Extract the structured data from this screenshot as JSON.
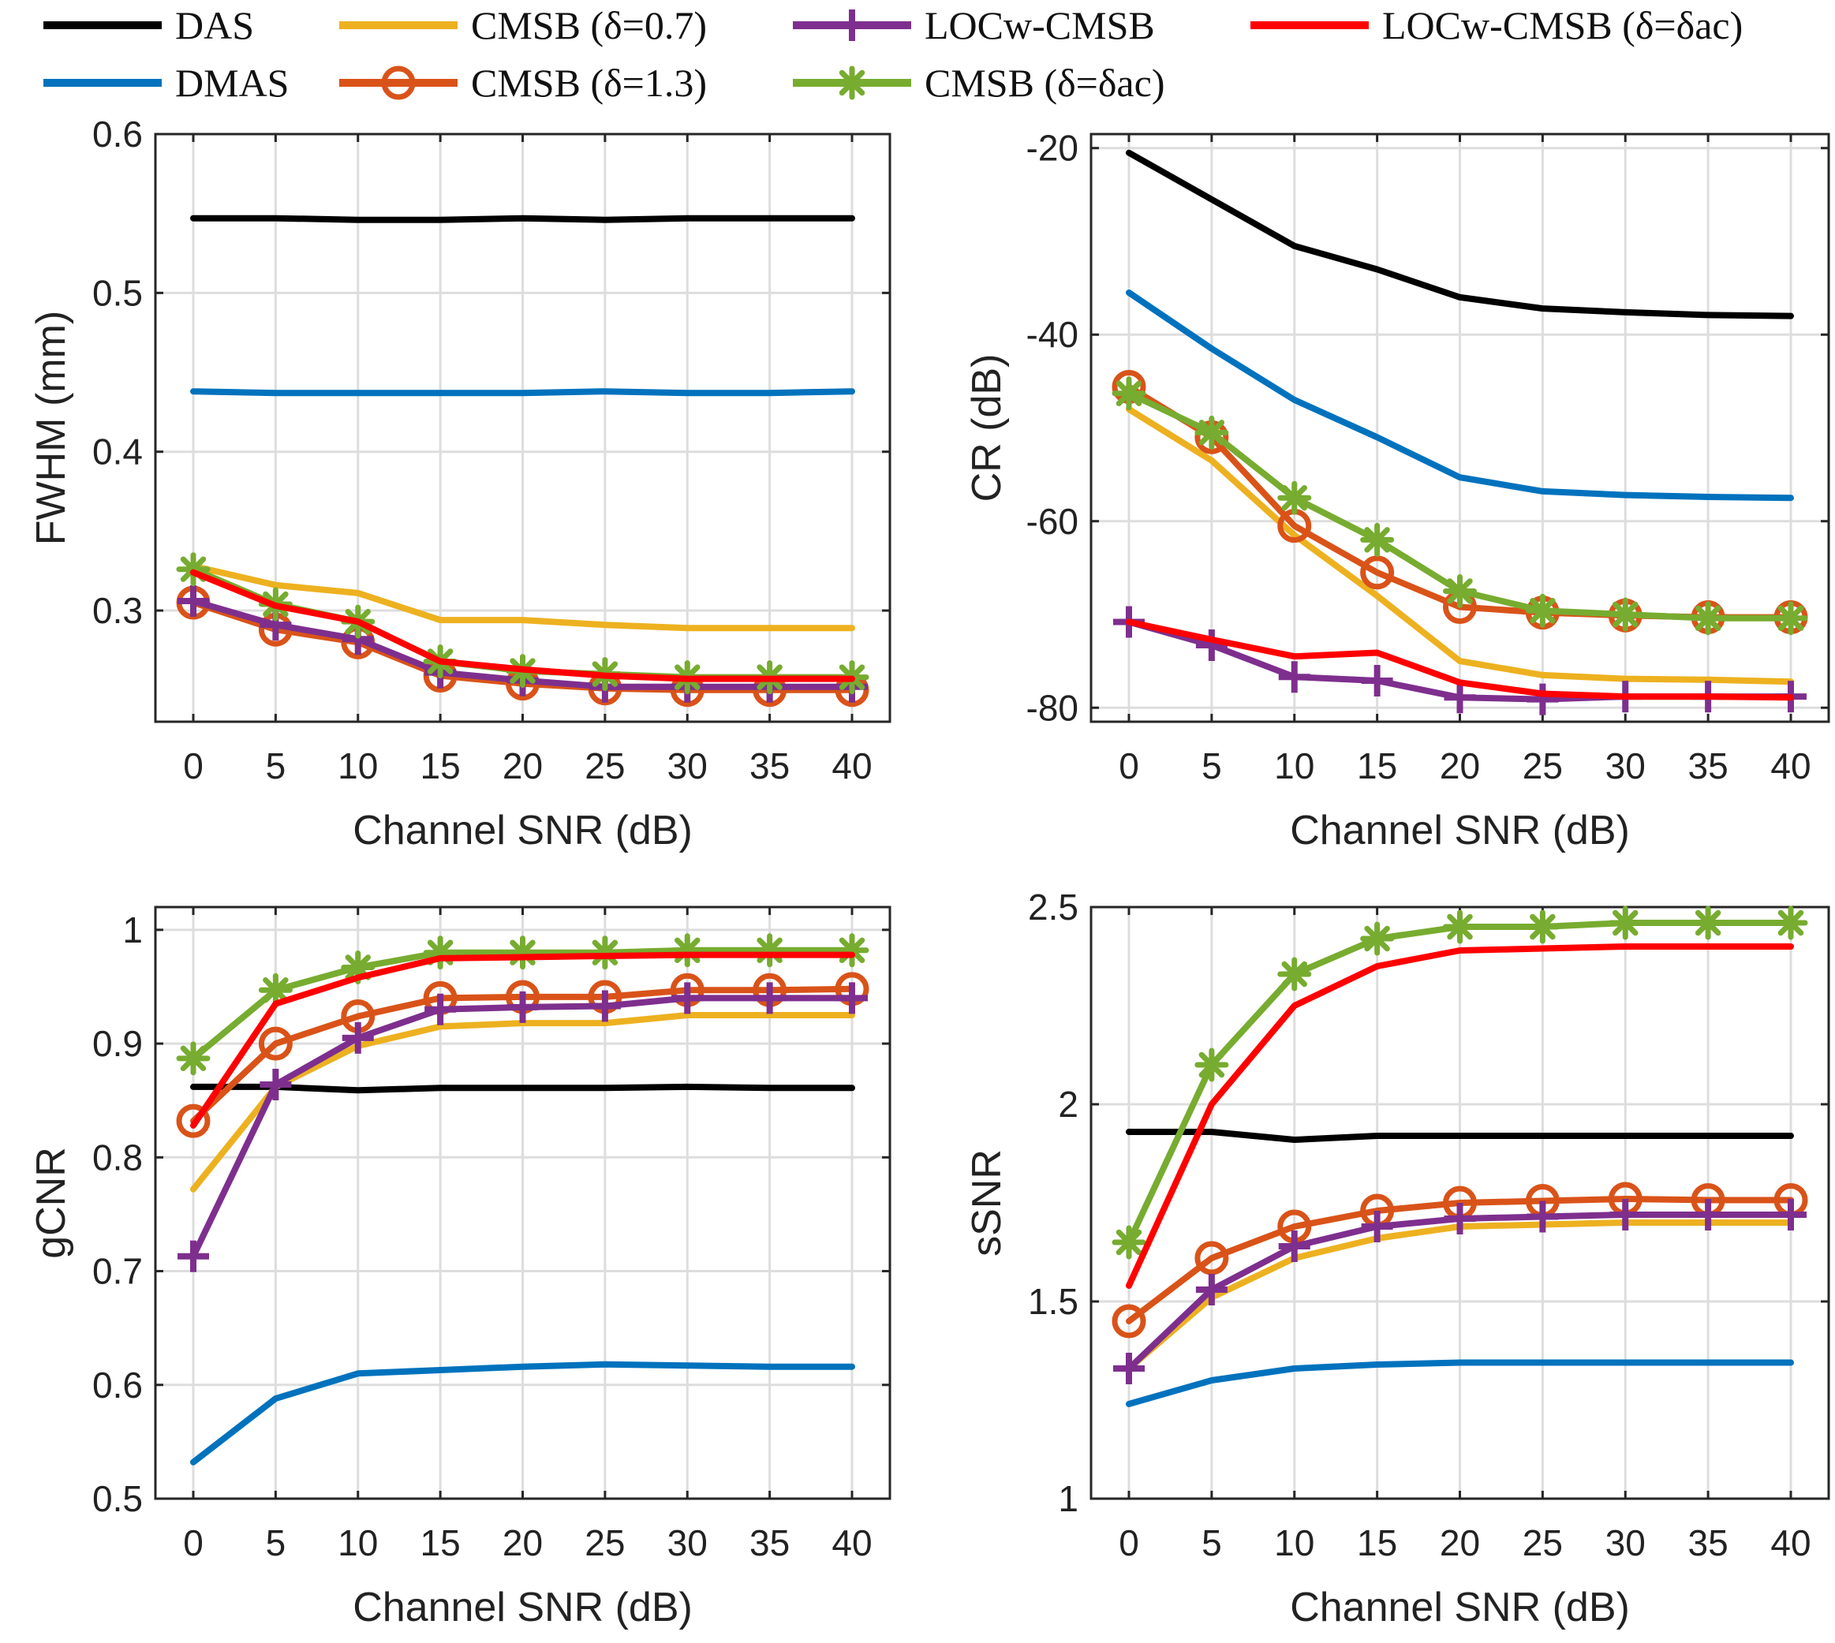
{
  "legend": [
    {
      "key": "das",
      "name": "DAS",
      "color": "#000000",
      "marker": "none"
    },
    {
      "key": "dmas",
      "name": "DMAS",
      "color": "#0072BD",
      "marker": "none"
    },
    {
      "key": "cmsb07",
      "name": "CMSB (δ=0.7)",
      "color": "#EDB120",
      "marker": "none"
    },
    {
      "key": "cmsb13",
      "name": "CMSB (δ=1.3)",
      "color": "#D95319",
      "marker": "circle"
    },
    {
      "key": "locw",
      "name": "LOCw-CMSB",
      "color": "#7E2F8E",
      "marker": "plus"
    },
    {
      "key": "cmsbac",
      "name": "CMSB (δ=δac)",
      "color": "#77AC30",
      "marker": "asterisk"
    },
    {
      "key": "locwac",
      "name": "LOCw-CMSB (δ=δac)",
      "color": "#FF0000",
      "marker": "none"
    }
  ],
  "chart_data": [
    {
      "type": "line",
      "title": "",
      "xlabel": "Channel SNR (dB)",
      "ylabel": "FWHM (mm)",
      "x": [
        0,
        5,
        10,
        15,
        20,
        25,
        30,
        35,
        40
      ],
      "xticks": [
        "0",
        "5",
        "10",
        "15",
        "20",
        "25",
        "30",
        "35",
        "40"
      ],
      "ylim": [
        0.23,
        0.6
      ],
      "yticks": [
        "0.3",
        "0.4",
        "0.5",
        "0.6"
      ],
      "ytick_values": [
        0.3,
        0.4,
        0.5,
        0.6
      ],
      "grid": true,
      "series": [
        {
          "key": "das",
          "values": [
            0.547,
            0.547,
            0.546,
            0.546,
            0.547,
            0.546,
            0.547,
            0.547,
            0.547
          ]
        },
        {
          "key": "dmas",
          "values": [
            0.438,
            0.437,
            0.437,
            0.437,
            0.437,
            0.438,
            0.437,
            0.437,
            0.438
          ]
        },
        {
          "key": "cmsb07",
          "values": [
            0.328,
            0.316,
            0.311,
            0.294,
            0.294,
            0.291,
            0.289,
            0.289,
            0.289
          ]
        },
        {
          "key": "cmsb13",
          "values": [
            0.305,
            0.288,
            0.28,
            0.259,
            0.254,
            0.251,
            0.25,
            0.25,
            0.25
          ]
        },
        {
          "key": "locw",
          "values": [
            0.306,
            0.291,
            0.282,
            0.261,
            0.256,
            0.252,
            0.252,
            0.252,
            0.252
          ]
        },
        {
          "key": "cmsbac",
          "values": [
            0.326,
            0.304,
            0.293,
            0.268,
            0.262,
            0.26,
            0.258,
            0.258,
            0.258
          ]
        },
        {
          "key": "locwac",
          "values": [
            0.324,
            0.303,
            0.293,
            0.268,
            0.263,
            0.259,
            0.257,
            0.257,
            0.257
          ]
        }
      ]
    },
    {
      "type": "line",
      "title": "",
      "xlabel": "Channel SNR (dB)",
      "ylabel": "CR (dB)",
      "x": [
        0,
        5,
        10,
        15,
        20,
        25,
        30,
        35,
        40
      ],
      "xticks": [
        "0",
        "5",
        "10",
        "15",
        "20",
        "25",
        "30",
        "35",
        "40"
      ],
      "ylim": [
        -81.5,
        -18.5
      ],
      "yticks": [
        "-20",
        "-40",
        "-60",
        "-80"
      ],
      "ytick_values": [
        -20,
        -40,
        -60,
        -80
      ],
      "grid": true,
      "series": [
        {
          "key": "das",
          "values": [
            -20.5,
            -25.5,
            -30.5,
            -33,
            -36,
            -37.2,
            -37.6,
            -37.9,
            -38
          ]
        },
        {
          "key": "dmas",
          "values": [
            -35.5,
            -41.5,
            -47,
            -51,
            -55.3,
            -56.8,
            -57.2,
            -57.4,
            -57.5
          ]
        },
        {
          "key": "cmsb07",
          "values": [
            -48,
            -53.5,
            -61.5,
            -68,
            -75,
            -76.5,
            -76.9,
            -77,
            -77.2
          ]
        },
        {
          "key": "cmsb13",
          "values": [
            -45.6,
            -51,
            -60.5,
            -65.5,
            -69.2,
            -69.8,
            -70.1,
            -70.3,
            -70.3
          ]
        },
        {
          "key": "locw",
          "values": [
            -70.8,
            -73.3,
            -76.7,
            -77.1,
            -78.9,
            -79.1,
            -78.8,
            -78.8,
            -78.8
          ]
        },
        {
          "key": "cmsbac",
          "values": [
            -46.3,
            -50.5,
            -57.5,
            -62,
            -67.5,
            -69.6,
            -70,
            -70.4,
            -70.4
          ]
        },
        {
          "key": "locwac",
          "values": [
            -70.8,
            -72.7,
            -74.5,
            -74.1,
            -77.3,
            -78.5,
            -78.8,
            -78.8,
            -78.9
          ]
        }
      ]
    },
    {
      "type": "line",
      "title": "",
      "xlabel": "Channel SNR (dB)",
      "ylabel": "gCNR",
      "x": [
        0,
        5,
        10,
        15,
        20,
        25,
        30,
        35,
        40
      ],
      "xticks": [
        "0",
        "5",
        "10",
        "15",
        "20",
        "25",
        "30",
        "35",
        "40"
      ],
      "ylim": [
        0.5,
        1.02
      ],
      "yticks": [
        "0.5",
        "0.6",
        "0.7",
        "0.8",
        "0.9",
        "1"
      ],
      "ytick_values": [
        0.5,
        0.6,
        0.7,
        0.8,
        0.9,
        1.0
      ],
      "grid": true,
      "series": [
        {
          "key": "das",
          "values": [
            0.862,
            0.862,
            0.859,
            0.861,
            0.861,
            0.861,
            0.862,
            0.861,
            0.861
          ]
        },
        {
          "key": "dmas",
          "values": [
            0.532,
            0.588,
            0.61,
            0.613,
            0.616,
            0.618,
            0.617,
            0.616,
            0.616
          ]
        },
        {
          "key": "cmsb07",
          "values": [
            0.772,
            0.862,
            0.898,
            0.915,
            0.918,
            0.918,
            0.925,
            0.925,
            0.925
          ]
        },
        {
          "key": "cmsb13",
          "values": [
            0.832,
            0.9,
            0.924,
            0.94,
            0.941,
            0.941,
            0.947,
            0.947,
            0.948
          ]
        },
        {
          "key": "locw",
          "values": [
            0.713,
            0.864,
            0.905,
            0.93,
            0.932,
            0.933,
            0.94,
            0.94,
            0.94
          ]
        },
        {
          "key": "cmsbac",
          "values": [
            0.887,
            0.947,
            0.967,
            0.98,
            0.98,
            0.98,
            0.982,
            0.982,
            0.982
          ]
        },
        {
          "key": "locwac",
          "values": [
            0.828,
            0.935,
            0.958,
            0.975,
            0.976,
            0.977,
            0.978,
            0.978,
            0.978
          ]
        }
      ]
    },
    {
      "type": "line",
      "title": "",
      "xlabel": "Channel SNR (dB)",
      "ylabel": "sSNR",
      "x": [
        0,
        5,
        10,
        15,
        20,
        25,
        30,
        35,
        40
      ],
      "xticks": [
        "0",
        "5",
        "10",
        "15",
        "20",
        "25",
        "30",
        "35",
        "40"
      ],
      "ylim": [
        1.0,
        2.5
      ],
      "yticks": [
        "1",
        "1.5",
        "2",
        "2.5"
      ],
      "ytick_values": [
        1.0,
        1.5,
        2.0,
        2.5
      ],
      "grid": true,
      "series": [
        {
          "key": "das",
          "values": [
            1.93,
            1.93,
            1.91,
            1.92,
            1.92,
            1.92,
            1.92,
            1.92,
            1.92
          ]
        },
        {
          "key": "dmas",
          "values": [
            1.24,
            1.3,
            1.33,
            1.34,
            1.345,
            1.345,
            1.345,
            1.345,
            1.345
          ]
        },
        {
          "key": "cmsb07",
          "values": [
            1.33,
            1.51,
            1.61,
            1.66,
            1.69,
            1.695,
            1.7,
            1.7,
            1.7
          ]
        },
        {
          "key": "cmsb13",
          "values": [
            1.45,
            1.61,
            1.69,
            1.73,
            1.75,
            1.755,
            1.76,
            1.757,
            1.757
          ]
        },
        {
          "key": "locw",
          "values": [
            1.33,
            1.53,
            1.64,
            1.69,
            1.71,
            1.715,
            1.72,
            1.72,
            1.72
          ]
        },
        {
          "key": "cmsbac",
          "values": [
            1.65,
            2.1,
            2.33,
            2.42,
            2.45,
            2.45,
            2.46,
            2.46,
            2.46
          ]
        },
        {
          "key": "locwac",
          "values": [
            1.54,
            2.0,
            2.25,
            2.35,
            2.39,
            2.395,
            2.4,
            2.4,
            2.4
          ]
        }
      ]
    }
  ]
}
